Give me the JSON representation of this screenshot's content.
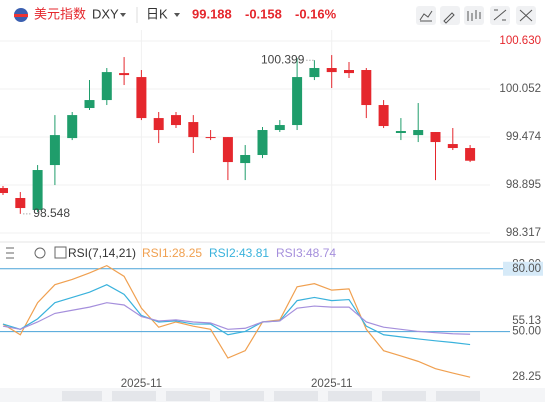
{
  "quote": {
    "symbol_name": "美元指数",
    "symbol": "DXY",
    "period": "日K",
    "price": 99.188,
    "change": -0.158,
    "change_pct": "-0.16%"
  },
  "chart_data": [
    {
      "type": "candlestick",
      "up_color": "#1f9d6b",
      "down_color": "#e5272d",
      "categories": [
        null,
        null,
        null,
        null,
        null,
        null,
        null,
        null,
        "2025-11",
        null,
        null,
        null,
        null,
        null,
        null,
        null,
        null,
        null,
        null,
        "2025-11",
        null,
        null,
        null,
        null,
        null,
        null,
        null,
        null
      ],
      "open": [
        98.859,
        98.739,
        98.594,
        99.136,
        99.461,
        99.823,
        99.919,
        100.244,
        100.196,
        99.702,
        99.738,
        99.654,
        99.473,
        99.473,
        99.16,
        99.257,
        99.558,
        99.618,
        100.196,
        100.305,
        100.281,
        100.281,
        99.859,
        99.522,
        99.497,
        99.534,
        99.389,
        99.341
      ],
      "high": [
        98.883,
        98.811,
        99.136,
        99.738,
        99.775,
        100.16,
        100.305,
        100.437,
        100.281,
        99.775,
        99.775,
        99.738,
        99.558,
        99.473,
        99.377,
        99.594,
        99.678,
        100.425,
        100.399,
        100.461,
        100.377,
        100.305,
        99.919,
        99.702,
        99.883,
        99.534,
        99.582,
        99.377
      ],
      "low": [
        98.775,
        98.548,
        98.57,
        98.895,
        99.437,
        99.799,
        99.859,
        100.1,
        99.678,
        99.401,
        99.582,
        99.281,
        99.437,
        98.955,
        98.955,
        99.22,
        99.534,
        99.558,
        100.16,
        100.064,
        100.184,
        99.702,
        99.582,
        99.437,
        99.413,
        98.955,
        99.317,
        99.172
      ],
      "close": [
        98.799,
        98.618,
        99.076,
        99.497,
        99.738,
        99.919,
        100.256,
        100.22,
        99.702,
        99.558,
        99.618,
        99.473,
        99.461,
        99.172,
        99.257,
        99.558,
        99.618,
        100.196,
        100.305,
        100.256,
        100.244,
        99.859,
        99.606,
        99.546,
        99.558,
        99.413,
        99.341,
        99.188
      ],
      "ylim": [
        98.233,
        100.763
      ],
      "yticks": [
        {
          "value": 100.63,
          "label": "100.630"
        },
        100.052,
        99.474,
        98.895,
        98.317
      ],
      "annotations": [
        {
          "index": 18,
          "field": "high"
        },
        {
          "index": 1,
          "field": "low"
        }
      ]
    },
    {
      "type": "line",
      "indicator": "RSI(7,14,21)",
      "series": [
        {
          "name": "RSI1:28.25",
          "color": "#f0a050",
          "values": [
            53.6,
            48.5,
            63.8,
            72.4,
            74.9,
            78.0,
            81.5,
            76.4,
            61.2,
            52.1,
            54.6,
            52.6,
            51.1,
            37.4,
            40.9,
            54.6,
            55.6,
            71.4,
            72.9,
            69.8,
            70.4,
            51.1,
            40.9,
            38.4,
            35.8,
            32.3,
            30.2,
            28.25
          ]
        },
        {
          "name": "RSI2:43.81",
          "color": "#3ab2dc",
          "values": [
            53.6,
            51.1,
            56.1,
            63.8,
            66.3,
            68.8,
            72.4,
            67.8,
            57.7,
            54.6,
            55.1,
            53.6,
            53.6,
            48.5,
            50.1,
            54.6,
            55.1,
            64.8,
            66.3,
            64.8,
            65.3,
            52.6,
            48.5,
            47.5,
            46.5,
            45.6,
            44.8,
            43.81
          ]
        },
        {
          "name": "RSI3:48.74",
          "color": "#a58fdc",
          "values": [
            52.6,
            51.1,
            54.6,
            58.7,
            60.2,
            61.7,
            63.8,
            62.7,
            57.2,
            55.1,
            55.6,
            54.6,
            54.1,
            51.1,
            51.6,
            54.6,
            55.1,
            61.2,
            62.2,
            61.7,
            61.7,
            54.6,
            52.1,
            51.1,
            50.1,
            49.5,
            49.0,
            48.74
          ]
        }
      ],
      "ylim": [
        25,
        88
      ],
      "yticks": [
        {
          "value": 82,
          "label": "82.00"
        },
        {
          "value": 80,
          "label": "80.00"
        },
        55.13,
        {
          "value": 50,
          "label": "50.00"
        },
        28.25
      ],
      "reference_lines": [
        80,
        50
      ]
    }
  ]
}
